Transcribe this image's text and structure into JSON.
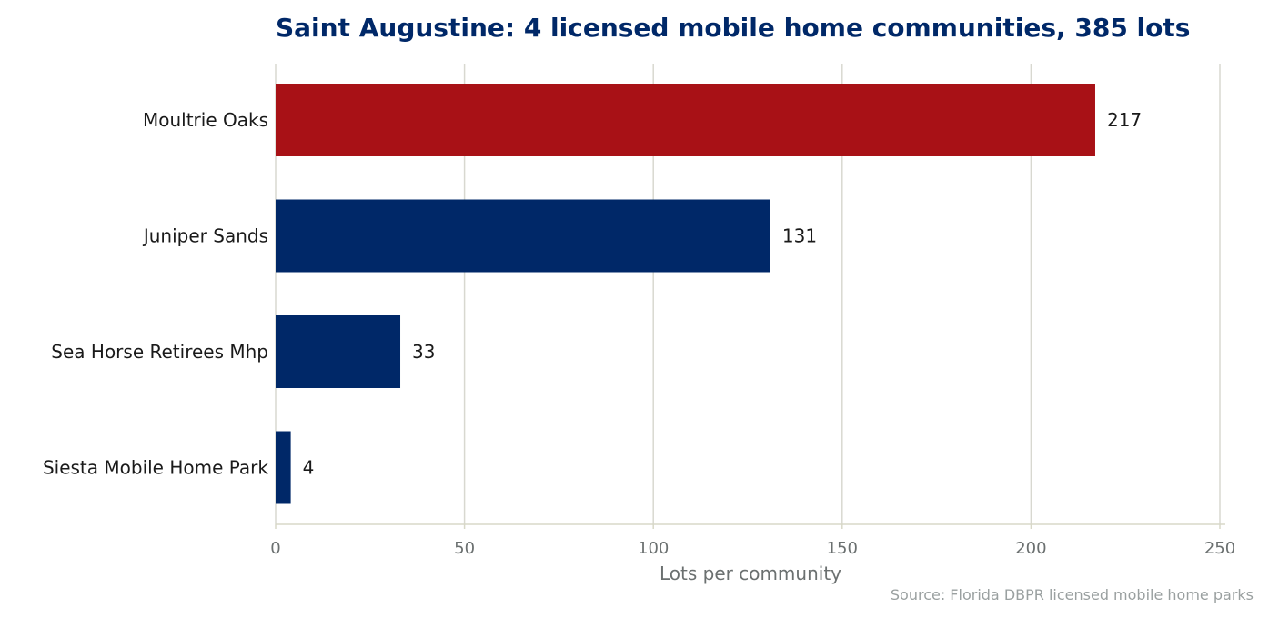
{
  "chart_data": {
    "type": "bar",
    "orientation": "horizontal",
    "title": "Saint Augustine: 4 licensed mobile home communities, 385 lots",
    "xlabel": "Lots per community",
    "ylabel": "",
    "categories": [
      "Moultrie Oaks",
      "Juniper Sands",
      "Sea Horse Retirees Mhp",
      "Siesta Mobile Home Park"
    ],
    "values": [
      217,
      131,
      33,
      4
    ],
    "value_labels": [
      "217",
      "131",
      "33",
      "4"
    ],
    "xlim": [
      0,
      250
    ],
    "xticks": [
      0,
      50,
      100,
      150,
      200,
      250
    ],
    "xtick_labels": [
      "0",
      "50",
      "100",
      "150",
      "200",
      "250"
    ],
    "grid": "vertical",
    "highlight_index": 0,
    "colors": {
      "highlight": "#a81116",
      "default": "#002868",
      "title": "#002868"
    },
    "source": "Source: Florida DBPR licensed mobile home parks"
  }
}
